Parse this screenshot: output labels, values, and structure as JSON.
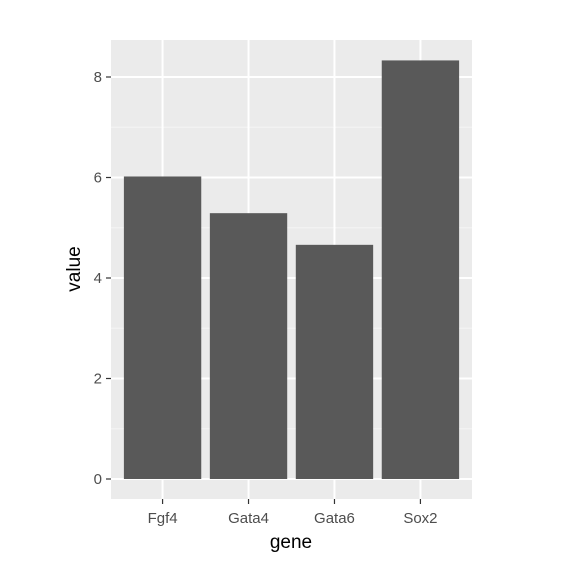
{
  "chart_data": {
    "type": "bar",
    "categories": [
      "Fgf4",
      "Gata4",
      "Gata6",
      "Sox2"
    ],
    "values": [
      6.02,
      5.29,
      4.66,
      8.33
    ],
    "title": "",
    "xlabel": "gene",
    "ylabel": "value",
    "ylim": [
      -0.4,
      8.75
    ],
    "yticks": [
      0,
      2,
      4,
      6,
      8
    ],
    "grid": true,
    "legend": "none",
    "colors": {
      "panel_background": "#ebebeb",
      "grid_major": "#ffffff",
      "grid_minor": "#f5f5f5",
      "bar_fill": "#595959",
      "tick_text": "#4d4d4d",
      "axis_title": "#000000"
    }
  }
}
